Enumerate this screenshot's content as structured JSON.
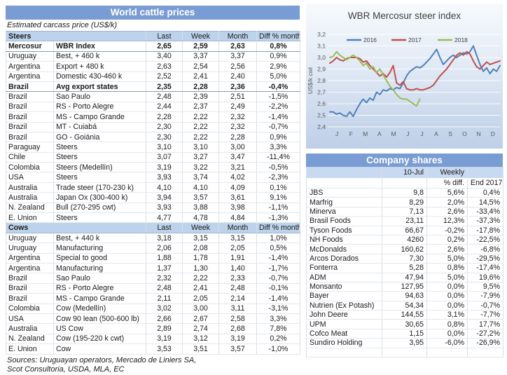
{
  "left_panel": {
    "title": "World cattle prices",
    "subtitle": "Estimated carcass price (US$/k)",
    "columns": [
      "Last",
      "Week",
      "Month",
      "Diff % month"
    ],
    "sections": [
      {
        "name": "Steers",
        "rows": [
          {
            "country": "Mercosur",
            "item": "WBR Index",
            "last": "2,65",
            "week": "2,59",
            "month": "2,63",
            "diff": "0,8%",
            "bold": true
          },
          {
            "country": "Uruguay",
            "item": "Best, + 460 k",
            "last": "3,40",
            "week": "3,37",
            "month": "3,37",
            "diff": "0,9%"
          },
          {
            "country": "Argentina",
            "item": "Export + 480 k",
            "last": "2,63",
            "week": "2,54",
            "month": "2,56",
            "diff": "2,9%"
          },
          {
            "country": "Argentina",
            "item": "Domestic 430-460 k",
            "last": "2,52",
            "week": "2,41",
            "month": "2,40",
            "diff": "5,0%"
          },
          {
            "country": "Brazil",
            "item": "Avg export states",
            "last": "2,35",
            "week": "2,28",
            "month": "2,36",
            "diff": "-0,4%",
            "bold": true
          },
          {
            "country": "Brazil",
            "item": "Sao Paulo",
            "last": "2,48",
            "week": "2,39",
            "month": "2,51",
            "diff": "-1,5%"
          },
          {
            "country": "Brazil",
            "item": "RS - Porto Alegre",
            "last": "2,44",
            "week": "2,37",
            "month": "2,49",
            "diff": "-2,2%"
          },
          {
            "country": "Brazil",
            "item": "MS - Campo Grande",
            "last": "2,28",
            "week": "2,22",
            "month": "2,32",
            "diff": "-1,4%"
          },
          {
            "country": "Brazil",
            "item": "MT - Cuiabá",
            "last": "2,30",
            "week": "2,22",
            "month": "2,32",
            "diff": "-0,7%"
          },
          {
            "country": "Brazil",
            "item": "GO - Goiánia",
            "last": "2,30",
            "week": "2,22",
            "month": "2,28",
            "diff": "0,9%"
          },
          {
            "country": "Paraguay",
            "item": "Steers",
            "last": "3,10",
            "week": "3,10",
            "month": "3,00",
            "diff": "3,3%"
          },
          {
            "country": "Chile",
            "item": "Steers",
            "last": "3,07",
            "week": "3,27",
            "month": "3,47",
            "diff": "-11,4%"
          },
          {
            "country": "Colombia",
            "item": "Steers (Medellín)",
            "last": "3,19",
            "week": "3,22",
            "month": "3,21",
            "diff": "-0,5%"
          },
          {
            "country": "USA",
            "item": "Steers",
            "last": "3,93",
            "week": "3,74",
            "month": "4,02",
            "diff": "-2,3%"
          },
          {
            "country": "Australia",
            "item": "Trade steer (170-230 k)",
            "last": "4,10",
            "week": "4,10",
            "month": "4,09",
            "diff": "0,1%"
          },
          {
            "country": "Australia",
            "item": "Japan Ox (300-400 k)",
            "last": "3,94",
            "week": "3,57",
            "month": "3,61",
            "diff": "9,1%"
          },
          {
            "country": "N. Zealand",
            "item": "Bull (270-295 cwt)",
            "last": "3,93",
            "week": "3,88",
            "month": "3,98",
            "diff": "-1,1%"
          },
          {
            "country": "E. Union",
            "item": "Steers",
            "last": "4,77",
            "week": "4,78",
            "month": "4,84",
            "diff": "-1,3%"
          }
        ]
      },
      {
        "name": "Cows",
        "rows": [
          {
            "country": "Uruguay",
            "item": "Best, + 440 k",
            "last": "3,18",
            "week": "3,15",
            "month": "3,15",
            "diff": "1,0%"
          },
          {
            "country": "Uruguay",
            "item": "Manufacturing",
            "last": "2,06",
            "week": "2,08",
            "month": "2,05",
            "diff": "0,5%"
          },
          {
            "country": "Argentina",
            "item": "Special to good",
            "last": "1,88",
            "week": "1,78",
            "month": "1,91",
            "diff": "-1,4%"
          },
          {
            "country": "Argentina",
            "item": "Manufacturing",
            "last": "1,37",
            "week": "1,30",
            "month": "1,40",
            "diff": "-1,7%"
          },
          {
            "country": "Brazil",
            "item": "Sao Paulo",
            "last": "2,32",
            "week": "2,22",
            "month": "2,33",
            "diff": "-0,7%"
          },
          {
            "country": "Brazil",
            "item": "RS - Porto Alegre",
            "last": "2,48",
            "week": "2,41",
            "month": "2,48",
            "diff": "-0,1%"
          },
          {
            "country": "Brazil",
            "item": "MS - Campo Grande",
            "last": "2,11",
            "week": "2,05",
            "month": "2,14",
            "diff": "-1,4%"
          },
          {
            "country": "Colombia",
            "item": "Cow (Medellín)",
            "last": "3,02",
            "week": "3,00",
            "month": "3,11",
            "diff": "-3,1%"
          },
          {
            "country": "USA",
            "item": "Cow 90 lean (500-600 lb)",
            "last": "2,66",
            "week": "2,67",
            "month": "2,58",
            "diff": "3,3%"
          },
          {
            "country": "Australia",
            "item": "US Cow",
            "last": "2,89",
            "week": "2,74",
            "month": "2,68",
            "diff": "7,8%"
          },
          {
            "country": "N. Zealand",
            "item": "Cow (195-220 k cwt)",
            "last": "3,19",
            "week": "3,12",
            "month": "3,19",
            "diff": "0,2%"
          },
          {
            "country": "E. Union",
            "item": "Cow",
            "last": "3,53",
            "week": "3,51",
            "month": "3,57",
            "diff": "-1,0%"
          }
        ]
      }
    ],
    "sources_line1": "Sources: Uruguayan operators, Mercado de Liniers SA,",
    "sources_line2": "Scot Consultoria, USDA, MLA, EC"
  },
  "chart_data": {
    "type": "line",
    "title": "WBR Mercosur steer index",
    "ylabel": "US$/k cwt",
    "ylim": [
      2.4,
      3.2
    ],
    "ytick_step": 0.1,
    "ytick_labels": [
      "2,4",
      "2,5",
      "2,6",
      "2,7",
      "2,8",
      "2,9",
      "3,0",
      "3,1",
      "3,2"
    ],
    "x_labels": [
      "J",
      "F",
      "M",
      "A",
      "M",
      "J",
      "J",
      "A",
      "S",
      "O",
      "N",
      "D"
    ],
    "grid": true,
    "legend_position": "top-inside",
    "points_per_year": 52,
    "series": [
      {
        "name": "2016",
        "color": "#4F81BD",
        "values": [
          2.53,
          2.53,
          2.51,
          2.52,
          2.5,
          2.49,
          2.53,
          2.49,
          2.55,
          2.6,
          2.64,
          2.61,
          2.65,
          2.63,
          2.7,
          2.68,
          2.72,
          2.71,
          2.73,
          2.72,
          2.74,
          2.73,
          2.78,
          2.84,
          2.88,
          2.9,
          2.92,
          2.91,
          2.93,
          2.96,
          2.99,
          3.03,
          3.07,
          3.0,
          2.94,
          2.97,
          3.0,
          3.02,
          3.0,
          3.02,
          3.04,
          3.03,
          3.05,
          3.1,
          3.02,
          2.94,
          2.88,
          2.91,
          2.86,
          2.9,
          2.88,
          2.93
        ]
      },
      {
        "name": "2017",
        "color": "#C0504D",
        "values": [
          2.95,
          2.97,
          3.0,
          2.98,
          2.97,
          2.99,
          3.0,
          3.0,
          3.0,
          2.99,
          2.96,
          2.97,
          2.93,
          2.9,
          2.87,
          2.84,
          2.86,
          2.83,
          2.87,
          2.93,
          2.78,
          2.76,
          2.79,
          2.73,
          2.72,
          2.72,
          2.73,
          2.72,
          2.72,
          2.73,
          2.74,
          2.76,
          2.8,
          2.84,
          2.87,
          2.9,
          2.94,
          2.98,
          3.02,
          3.04,
          3.02,
          3.05,
          3.03,
          2.97,
          2.92,
          2.9,
          2.93,
          2.96,
          2.94,
          2.95,
          2.96,
          2.97
        ]
      },
      {
        "name": "2018",
        "color": "#9BBB59",
        "values": [
          3.0,
          3.01,
          3.05,
          3.02,
          3.0,
          2.98,
          3.0,
          3.02,
          3.0,
          2.97,
          2.93,
          2.95,
          2.9,
          2.92,
          2.87,
          2.9,
          2.85,
          2.8,
          2.75,
          2.72,
          2.68,
          2.65,
          2.64,
          2.64,
          2.62,
          2.6,
          2.58,
          2.64
        ]
      }
    ]
  },
  "company_shares": {
    "title": "Company shares",
    "header": {
      "date": "10-Jul",
      "weekly_line1": "Weekly",
      "weekly_line2": "% diff.",
      "end": "End 2017"
    },
    "rows": [
      {
        "name": "JBS",
        "price": "9,8",
        "weekly": "5,6%",
        "end": "0,4%"
      },
      {
        "name": "Marfrig",
        "price": "8,29",
        "weekly": "2,0%",
        "end": "14,5%"
      },
      {
        "name": "Minerva",
        "price": "7,13",
        "weekly": "2,6%",
        "end": "-33,4%"
      },
      {
        "name": "Brasil Foods",
        "price": "23,11",
        "weekly": "12,3%",
        "end": "-37,3%"
      },
      {
        "name": "Tyson Foods",
        "price": "66,67",
        "weekly": "-0,2%",
        "end": "-17,8%"
      },
      {
        "name": "NH Foods",
        "price": "4260",
        "weekly": "0,2%",
        "end": "-22,5%"
      },
      {
        "name": "McDonalds",
        "price": "160,62",
        "weekly": "2,6%",
        "end": "-6,8%"
      },
      {
        "name": "Arcos Dorados",
        "price": "7,30",
        "weekly": "5,0%",
        "end": "-29,5%"
      },
      {
        "name": "Fonterra",
        "price": "5,28",
        "weekly": "0,8%",
        "end": "-17,4%"
      },
      {
        "name": "ADM",
        "price": "47,94",
        "weekly": "5,0%",
        "end": "19,6%"
      },
      {
        "name": "Monsanto",
        "price": "127,95",
        "weekly": "0,0%",
        "end": "9,5%"
      },
      {
        "name": "Bayer",
        "price": "94,63",
        "weekly": "0,0%",
        "end": "-7,9%"
      },
      {
        "name": "Nutrien (Ex Potash)",
        "price": "54,34",
        "weekly": "0,0%",
        "end": "-0,7%"
      },
      {
        "name": "John Deere",
        "price": "144,55",
        "weekly": "3,1%",
        "end": "-7,7%"
      },
      {
        "name": "UPM",
        "price": "30,65",
        "weekly": "0,8%",
        "end": "17,7%"
      },
      {
        "name": "Cofco Meat",
        "price": "1,15",
        "weekly": "0,0%",
        "end": "-27,2%"
      },
      {
        "name": "Sundiro Holding",
        "price": "3,95",
        "weekly": "-6,0%",
        "end": "-26,9%"
      }
    ]
  }
}
